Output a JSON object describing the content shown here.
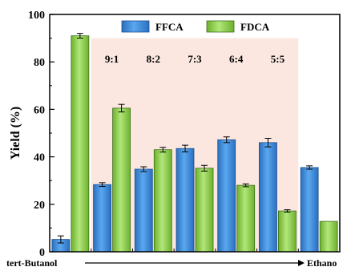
{
  "chart_data": {
    "type": "bar",
    "title": "",
    "xlabel": "",
    "ylabel": "Yield (%)",
    "ylim": [
      0,
      100
    ],
    "yticks": [
      0,
      20,
      40,
      60,
      80,
      100
    ],
    "grid": false,
    "legend_position": "top",
    "categories": [
      "",
      "9:1",
      "8:2",
      "7:3",
      "6:4",
      "5:5",
      ""
    ],
    "x_start_label": "tert-Butanol",
    "x_end_label": "Ethano",
    "series": [
      {
        "name": "FFCA",
        "color": "#3f8fdf",
        "values": [
          5.2,
          28.3,
          34.8,
          43.5,
          47.2,
          46.0,
          35.5
        ],
        "errors": [
          1.5,
          0.8,
          1.0,
          1.4,
          1.2,
          1.8,
          0.7
        ]
      },
      {
        "name": "FDCA",
        "color": "#8ed24a",
        "values": [
          91.0,
          60.5,
          43.0,
          35.2,
          28.0,
          17.2,
          12.8
        ],
        "errors": [
          1.0,
          1.6,
          1.0,
          1.2,
          0.6,
          0.5,
          0
        ]
      }
    ],
    "highlight_region": {
      "from_category": 1,
      "to_category": 6,
      "color": "#fbe7e0"
    }
  }
}
